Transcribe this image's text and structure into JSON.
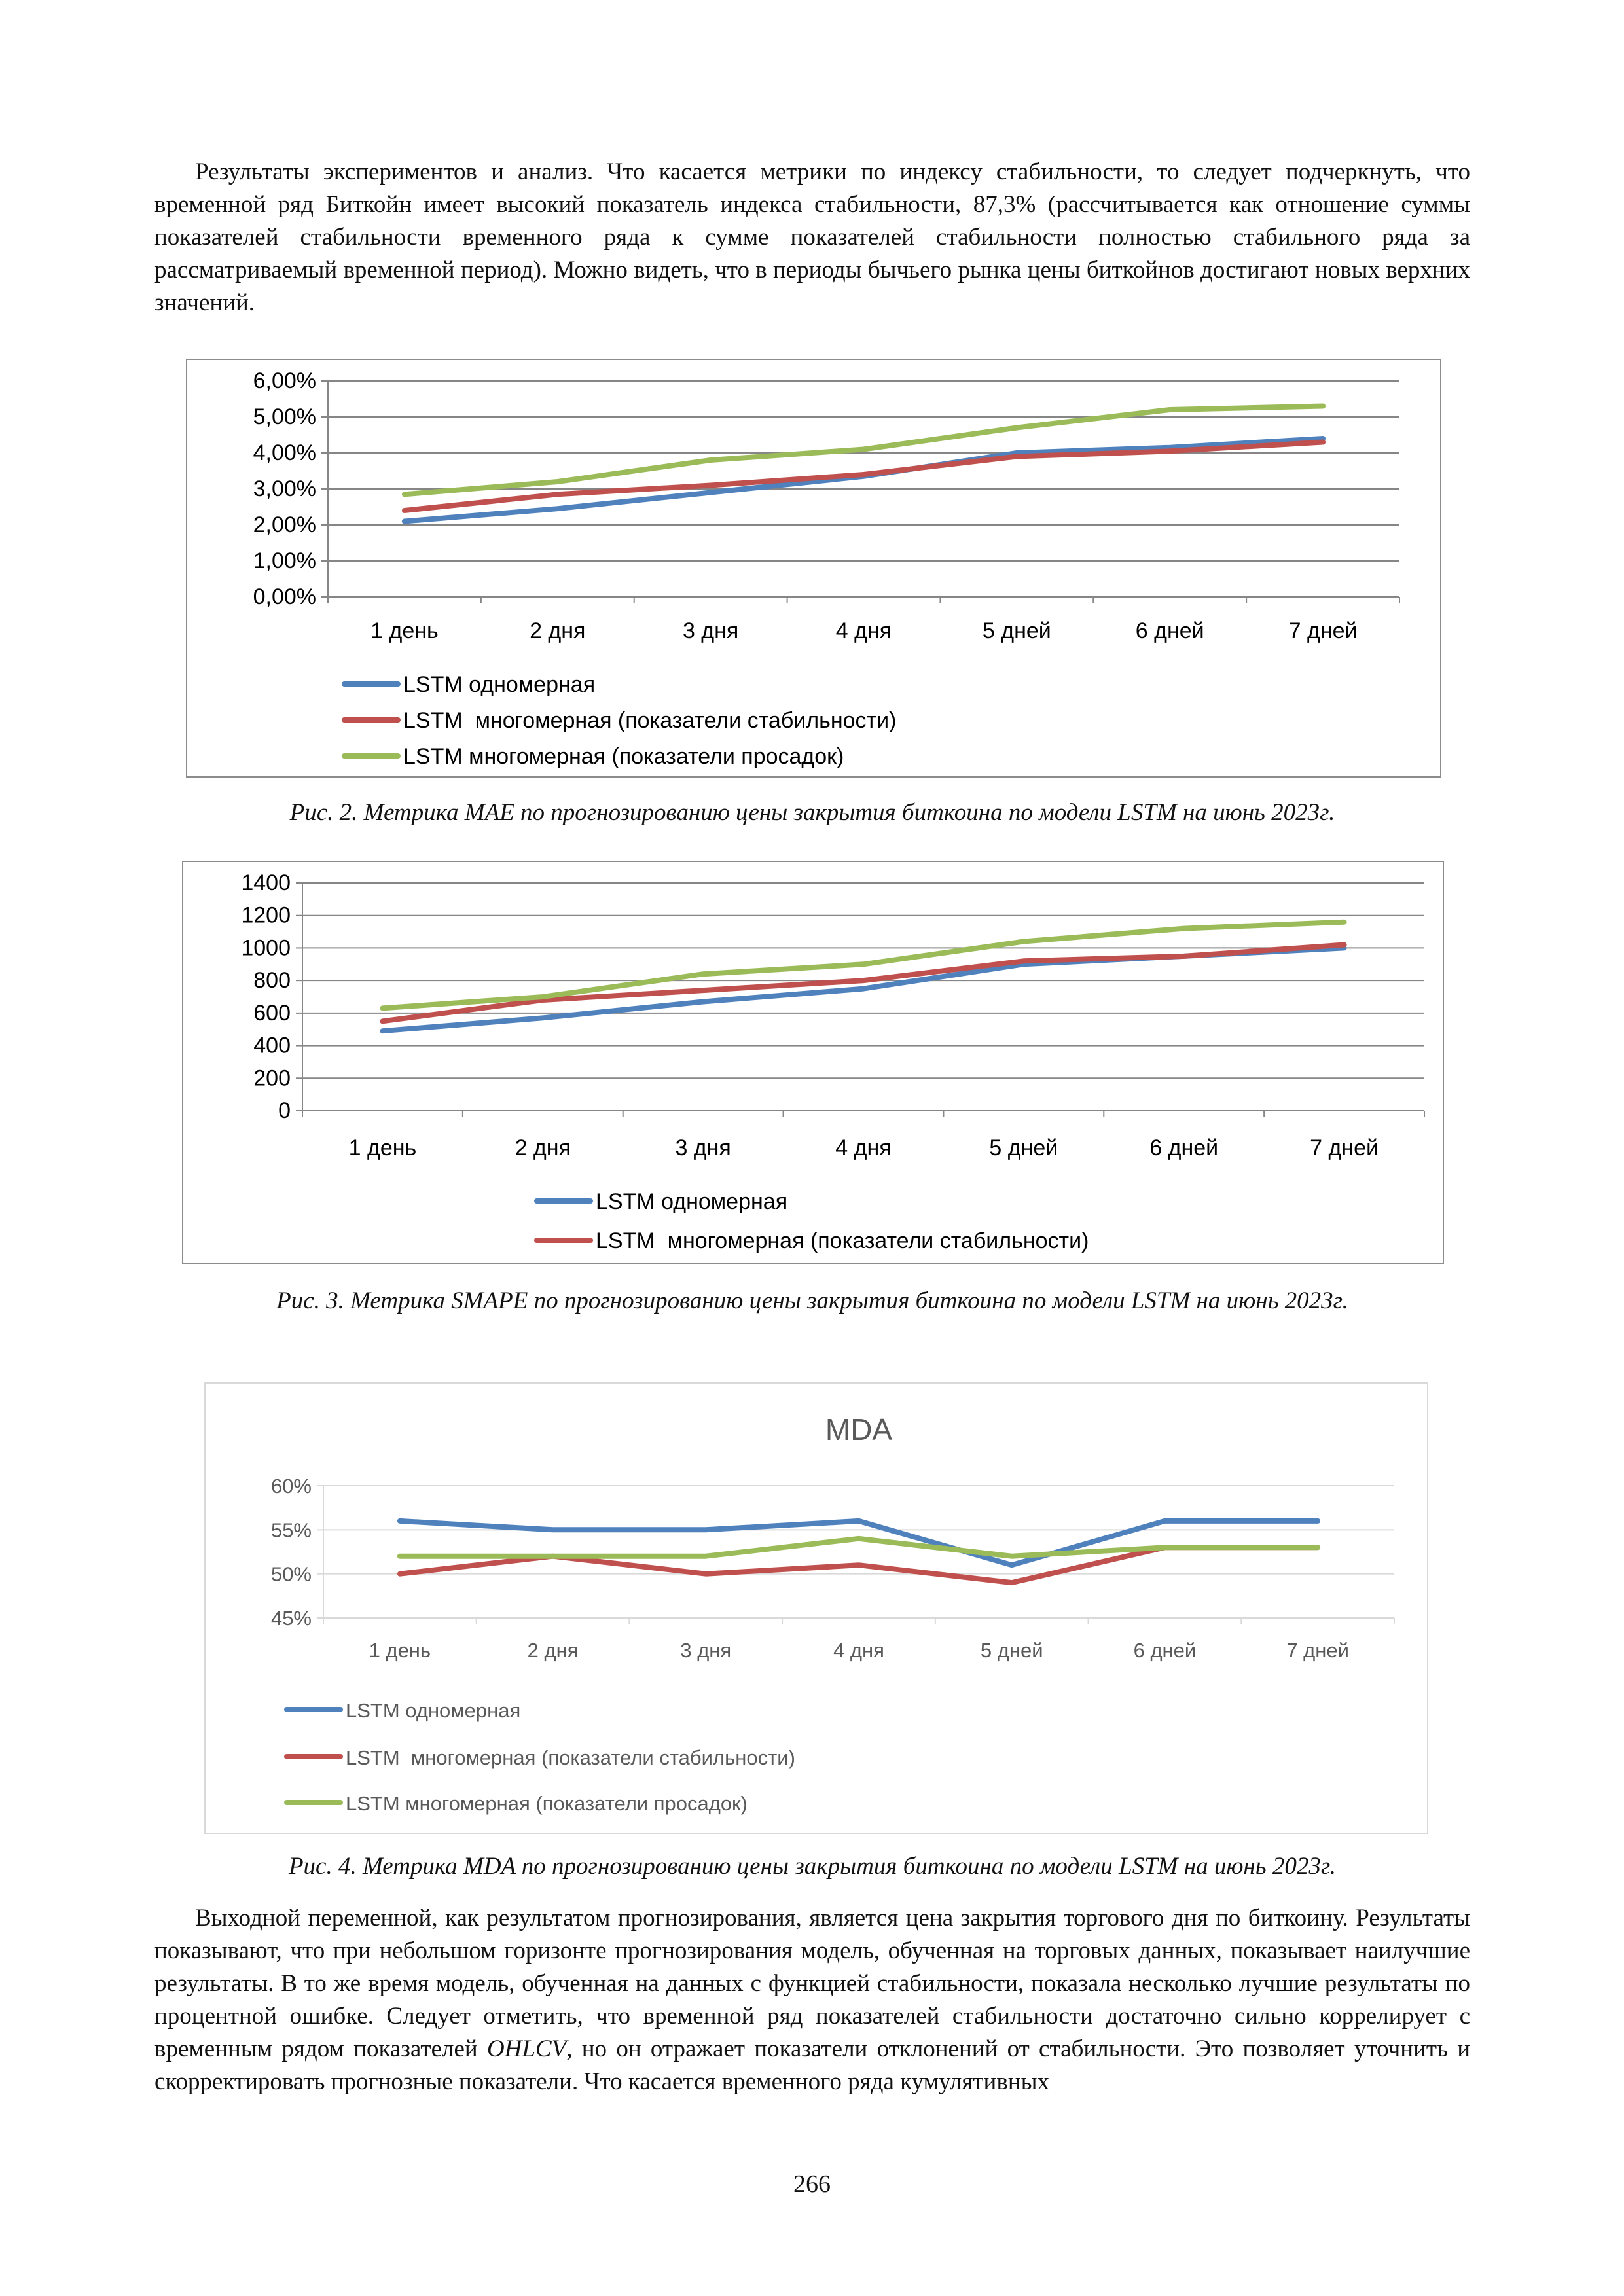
{
  "intro_paragraph": "Результаты экспериментов и анализ. Что касается метрики по индексу стабильности, то следует подчеркнуть, что временной ряд Биткойн имеет высокий показатель индекса стабильности, 87,3% (рассчитывается как отношение суммы показателей стабильности временного ряда к сумме показателей стабильности полностью стабильного ряда за рассматриваемый временной период). Можно видеть, что в периоды бычьего рынка цены биткойнов достигают новых верхних значений.",
  "figures": [
    {
      "caption": "Рис. 2. Метрика MAE по прогнозированию цены закрытия биткоина по модели LSTM на июнь 2023г."
    },
    {
      "caption": "Рис. 3. Метрика SMAPE по прогнозированию цены закрытия биткоина по модели LSTM на июнь 2023г."
    },
    {
      "caption": "Рис. 4. Метрика MDA по прогнозированию цены закрытия биткоина по модели LSTM на июнь 2023г."
    }
  ],
  "closing_paragraph_parts": [
    "Выходной переменной, как результатом прогнозирования, является цена закрытия торгового дня по биткоину. Результаты показывают, что при небольшом горизонте прогнозирования модель, обученная на торговых данных, показывает наилучшие результаты. В то же время модель, обученная на данных с функцией стабильности, показала несколько лучшие результаты по процентной ошибке. Следует отметить, что временной ряд показателей стабильности достаточно сильно коррелирует с временным рядом показателей ",
    "OHLCV",
    ", но он отражает показатели отклонений от стабильности. Это позволяет уточнить и скорректировать прогнозные показатели. Что касается временного ряда кумулятивных"
  ],
  "page_number": "266",
  "chart_data": [
    {
      "type": "line",
      "title": "",
      "categories": [
        "1 день",
        "2 дня",
        "3 дня",
        "4 дня",
        "5 дней",
        "6 дней",
        "7 дней"
      ],
      "yticks": [
        "0,00%",
        "1,00%",
        "2,00%",
        "3,00%",
        "4,00%",
        "5,00%",
        "6,00%"
      ],
      "ylim": [
        0,
        6
      ],
      "unit": "%",
      "grid": true,
      "legend_position": "bottom",
      "series": [
        {
          "name": "LSTM одномерная",
          "color": "#4F81BD",
          "values": [
            2.1,
            2.45,
            2.9,
            3.35,
            4.0,
            4.15,
            4.4
          ]
        },
        {
          "name": "LSTM  многомерная (показатели стабильности)",
          "color": "#C0504D",
          "values": [
            2.4,
            2.85,
            3.1,
            3.4,
            3.9,
            4.05,
            4.3
          ]
        },
        {
          "name": "LSTM многомерная (показатели просадок)",
          "color": "#9BBB59",
          "values": [
            2.85,
            3.2,
            3.8,
            4.1,
            4.7,
            5.2,
            5.3
          ]
        }
      ]
    },
    {
      "type": "line",
      "title": "",
      "categories": [
        "1 день",
        "2 дня",
        "3 дня",
        "4 дня",
        "5 дней",
        "6 дней",
        "7 дней"
      ],
      "yticks": [
        "0",
        "200",
        "400",
        "600",
        "800",
        "1000",
        "1200",
        "1400"
      ],
      "ylim": [
        0,
        1400
      ],
      "grid": true,
      "legend_position": "bottom",
      "series": [
        {
          "name": "LSTM одномерная",
          "color": "#4F81BD",
          "values": [
            490,
            570,
            670,
            750,
            900,
            950,
            1000
          ]
        },
        {
          "name": "LSTM  многомерная (показатели стабильности)",
          "color": "#C0504D",
          "values": [
            550,
            680,
            740,
            800,
            920,
            950,
            1020
          ]
        },
        {
          "name": "",
          "color": "#9BBB59",
          "values": [
            630,
            700,
            840,
            900,
            1040,
            1120,
            1160
          ]
        }
      ]
    },
    {
      "type": "line",
      "title": "MDA",
      "categories": [
        "1 день",
        "2 дня",
        "3 дня",
        "4 дня",
        "5 дней",
        "6 дней",
        "7 дней"
      ],
      "yticks": [
        "45%",
        "50%",
        "55%",
        "60%"
      ],
      "ylim": [
        45,
        60
      ],
      "unit": "%",
      "grid": true,
      "legend_position": "bottom",
      "series": [
        {
          "name": "LSTM одномерная",
          "color": "#4F81BD",
          "values": [
            56,
            55,
            55,
            56,
            51,
            56,
            56
          ]
        },
        {
          "name": "LSTM  многомерная (показатели стабильности)",
          "color": "#C0504D",
          "values": [
            50,
            52,
            50,
            51,
            49,
            53,
            53
          ]
        },
        {
          "name": "LSTM многомерная (показатели просадок)",
          "color": "#9BBB59",
          "values": [
            52,
            52,
            52,
            54,
            52,
            53,
            53
          ]
        }
      ]
    }
  ]
}
